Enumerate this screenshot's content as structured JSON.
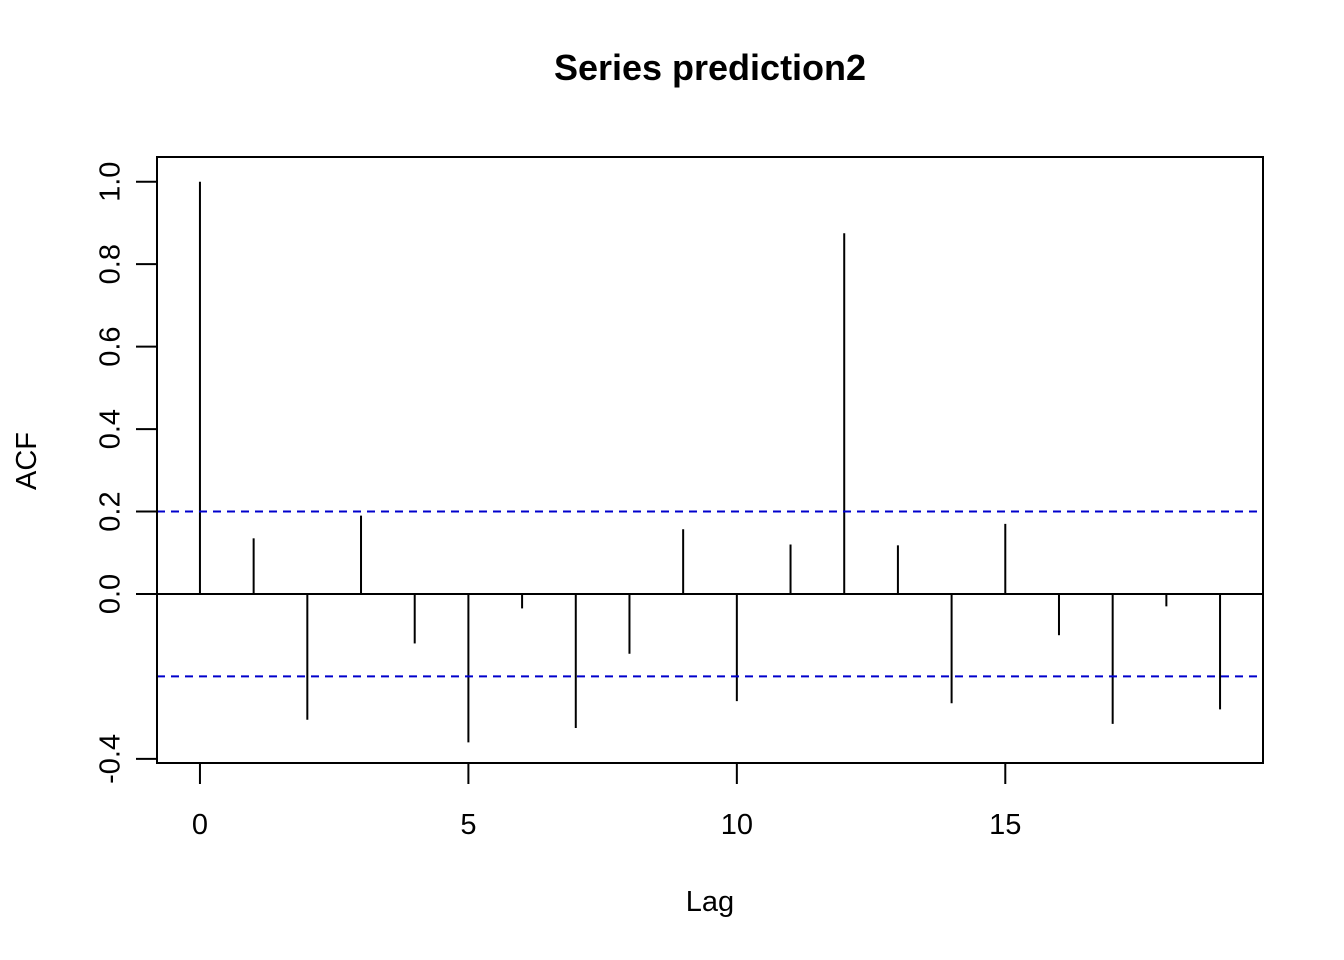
{
  "chart_data": {
    "type": "bar",
    "title": "Series  prediction2",
    "xlabel": "Lag",
    "ylabel": "ACF",
    "x": [
      0,
      1,
      2,
      3,
      4,
      5,
      6,
      7,
      8,
      9,
      10,
      11,
      12,
      13,
      14,
      15,
      16,
      17,
      18,
      19
    ],
    "values": [
      1.0,
      0.135,
      -0.305,
      0.19,
      -0.12,
      -0.36,
      -0.035,
      -0.325,
      -0.145,
      0.157,
      -0.26,
      0.12,
      0.875,
      0.118,
      -0.265,
      0.17,
      -0.1,
      -0.315,
      -0.03,
      -0.28
    ],
    "confidence_bound": 0.2,
    "xlim": [
      -0.8,
      19.8
    ],
    "ylim": [
      -0.41,
      1.06
    ],
    "x_ticks": [
      0,
      5,
      10,
      15
    ],
    "x_tick_labels": [
      "0",
      "5",
      "10",
      "15"
    ],
    "y_ticks": [
      -0.4,
      0.0,
      0.2,
      0.4,
      0.6,
      0.8,
      1.0
    ],
    "y_tick_labels": [
      "-0.4",
      "0.0",
      "0.2",
      "0.4",
      "0.6",
      "0.8",
      "1.0"
    ],
    "colors": {
      "bars": "#000000",
      "confidence_lines": "#0000CC",
      "zero_line": "#000000"
    }
  }
}
